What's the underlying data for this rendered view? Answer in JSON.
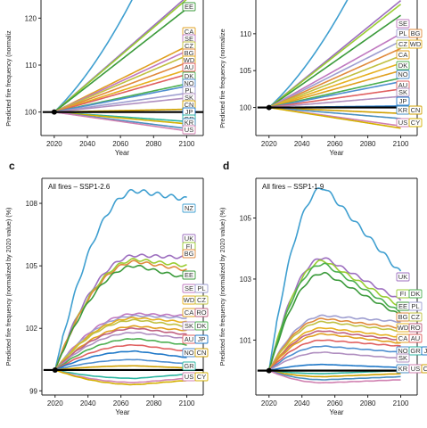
{
  "chart_data": [
    {
      "type": "line",
      "panel_letter": "",
      "title": "",
      "xlabel": "Year",
      "ylabel": "Predicted fire frequency (normaliz",
      "x_ticks": [
        2020,
        2040,
        2060,
        2080,
        2100
      ],
      "y_ticks": [
        100,
        110,
        120
      ],
      "y_tick_labels": [
        "100",
        "110",
        "120"
      ],
      "xlim": [
        2012,
        2110
      ],
      "ylim": [
        95,
        125
      ],
      "country_labels": [
        "EE",
        "CA",
        "SE",
        "CZ",
        "BG",
        "WD",
        "AU",
        "DK",
        "NO",
        "PL",
        "SK",
        "CN",
        "JP",
        "GR",
        "CY",
        "KR",
        "US"
      ],
      "series": [
        {
          "label": "NZ",
          "color": "#3f9fd0",
          "end": 150,
          "shape": "convex"
        },
        {
          "label": "UK",
          "color": "#9d6fbf",
          "end": 124.5,
          "shape": "linear"
        },
        {
          "label": "FI",
          "color": "#9acd32",
          "end": 124,
          "shape": "linear"
        },
        {
          "label": "EE",
          "color": "#3a9a3a",
          "end": 122,
          "shape": "linear"
        },
        {
          "label": "CA",
          "color": "#e0a020",
          "end": 114,
          "shape": "linear"
        },
        {
          "label": "SE",
          "color": "#c079c0",
          "end": 113,
          "shape": "linear"
        },
        {
          "label": "CZ",
          "color": "#c0c040",
          "end": 112,
          "shape": "linear"
        },
        {
          "label": "BG",
          "color": "#e08a3c",
          "end": 110.5,
          "shape": "linear"
        },
        {
          "label": "WD",
          "color": "#e6b020",
          "end": 109,
          "shape": "linear"
        },
        {
          "label": "AU",
          "color": "#e06060",
          "end": 108,
          "shape": "linear"
        },
        {
          "label": "DK",
          "color": "#4caf50",
          "end": 106,
          "shape": "linear"
        },
        {
          "label": "NO",
          "color": "#4f8fd0",
          "end": 105.5,
          "shape": "linear"
        },
        {
          "label": "PL",
          "color": "#9e9ed0",
          "end": 104,
          "shape": "linear"
        },
        {
          "label": "SK",
          "color": "#b08fc0",
          "end": 103,
          "shape": "linear"
        },
        {
          "label": "CN",
          "color": "#d0a000",
          "end": 100.6,
          "shape": "linear"
        },
        {
          "label": "JP",
          "color": "#1f78c8",
          "end": 100,
          "shape": "linear"
        },
        {
          "label": "GR",
          "color": "#2cb5a0",
          "end": 98,
          "shape": "linear"
        },
        {
          "label": "CY",
          "color": "#d4b000",
          "end": 97.5,
          "shape": "linear"
        },
        {
          "label": "KR",
          "color": "#4a8fc0",
          "end": 96.5,
          "shape": "linear"
        },
        {
          "label": "US",
          "color": "#d080b0",
          "end": 96,
          "shape": "linear"
        }
      ]
    },
    {
      "type": "line",
      "panel_letter": "",
      "title": "",
      "xlabel": "Year",
      "ylabel": "Predicted fire frequency (normalize",
      "x_ticks": [
        2020,
        2040,
        2060,
        2080,
        2100
      ],
      "y_ticks": [
        100,
        105,
        110
      ],
      "y_tick_labels": [
        "100",
        "105",
        "110"
      ],
      "xlim": [
        2012,
        2110
      ],
      "ylim": [
        96.2,
        115.3
      ],
      "country_labels": [
        "SE",
        "PL",
        "BG",
        "CZ",
        "WD",
        "CA",
        "DK",
        "NO",
        "AU",
        "SK",
        "JP",
        "KR",
        "CN",
        "US",
        "CY"
      ],
      "series": [
        {
          "label": "NZ",
          "color": "#3f9fd0",
          "end": 130,
          "shape": "convex"
        },
        {
          "label": "UK",
          "color": "#9d6fbf",
          "end": 114.5,
          "shape": "linear"
        },
        {
          "label": "FI",
          "color": "#9acd32",
          "end": 114,
          "shape": "linear"
        },
        {
          "label": "EE",
          "color": "#3a9a3a",
          "end": 112.5,
          "shape": "linear"
        },
        {
          "label": "SE",
          "color": "#c079c0",
          "end": 110,
          "shape": "linear"
        },
        {
          "label": "PL",
          "color": "#9e9ed0",
          "end": 109,
          "shape": "linear"
        },
        {
          "label": "BG",
          "color": "#e08a3c",
          "end": 108,
          "shape": "linear"
        },
        {
          "label": "CZ",
          "color": "#c0c040",
          "end": 107,
          "shape": "linear"
        },
        {
          "label": "WD",
          "color": "#e6b020",
          "end": 106,
          "shape": "linear"
        },
        {
          "label": "CA",
          "color": "#e0a020",
          "end": 105,
          "shape": "linear"
        },
        {
          "label": "DK",
          "color": "#4caf50",
          "end": 104,
          "shape": "linear"
        },
        {
          "label": "NO",
          "color": "#4f8fd0",
          "end": 103.5,
          "shape": "linear"
        },
        {
          "label": "AU",
          "color": "#e06060",
          "end": 102.5,
          "shape": "linear"
        },
        {
          "label": "SK",
          "color": "#b08fc0",
          "end": 101.5,
          "shape": "linear"
        },
        {
          "label": "JP",
          "color": "#1f78c8",
          "end": 100.2,
          "shape": "linear"
        },
        {
          "label": "CN",
          "color": "#d0a000",
          "end": 99.2,
          "shape": "linear"
        },
        {
          "label": "KR",
          "color": "#4a8fc0",
          "end": 98.5,
          "shape": "linear"
        },
        {
          "label": "US",
          "color": "#d080b0",
          "end": 97.5,
          "shape": "linear"
        },
        {
          "label": "CY",
          "color": "#d4b000",
          "end": 97.2,
          "shape": "linear"
        }
      ]
    },
    {
      "type": "line",
      "panel_letter": "c",
      "title": "All fires – SSP1-2.6",
      "xlabel": "Year",
      "ylabel": "Predicted fire frequency (normalized by 2020 value) (%)",
      "x_ticks": [
        2020,
        2040,
        2060,
        2080,
        2100
      ],
      "y_ticks": [
        99,
        102,
        105,
        108
      ],
      "y_tick_labels": [
        "99",
        "102",
        "105",
        "108"
      ],
      "xlim": [
        2012,
        2110
      ],
      "ylim": [
        98.8,
        109.2
      ],
      "country_labels": [
        "NZ",
        "UK",
        "FI",
        "BG",
        "EE",
        "SE",
        "PL",
        "WD",
        "CZ",
        "CA",
        "RO",
        "SK",
        "DK",
        "AU",
        "JP",
        "NO",
        "CN",
        "GR",
        "US",
        "CY"
      ],
      "series": [
        {
          "label": "NZ",
          "color": "#3f9fd0",
          "peak": 108.6,
          "end": 108.2
        },
        {
          "label": "UK",
          "color": "#9d6fbf",
          "peak": 105.5,
          "end": 105.4
        },
        {
          "label": "FI",
          "color": "#9acd32",
          "peak": 105.3,
          "end": 105.0
        },
        {
          "label": "BG",
          "color": "#e08a3c",
          "peak": 105.2,
          "end": 104.8
        },
        {
          "label": "EE",
          "color": "#3a9a3a",
          "peak": 105.0,
          "end": 104.4
        },
        {
          "label": "SE",
          "color": "#c079c0",
          "peak": 102.7,
          "end": 102.6
        },
        {
          "label": "PL",
          "color": "#9e9ed0",
          "peak": 102.6,
          "end": 102.5
        },
        {
          "label": "WD",
          "color": "#e6b020",
          "peak": 102.5,
          "end": 102.3
        },
        {
          "label": "CZ",
          "color": "#c0c040",
          "peak": 102.4,
          "end": 102.1
        },
        {
          "label": "CA",
          "color": "#e0a020",
          "peak": 102.1,
          "end": 101.9
        },
        {
          "label": "RO",
          "color": "#c06080",
          "peak": 102.0,
          "end": 101.7
        },
        {
          "label": "SK",
          "color": "#b08fc0",
          "peak": 101.8,
          "end": 101.5
        },
        {
          "label": "DK",
          "color": "#4caf50",
          "peak": 101.5,
          "end": 101.2
        },
        {
          "label": "AU",
          "color": "#e06060",
          "peak": 101.2,
          "end": 100.9
        },
        {
          "label": "JP",
          "color": "#1f78c8",
          "peak": 100.9,
          "end": 100.6
        },
        {
          "label": "NO",
          "color": "#4f8fd0",
          "peak": 100.5,
          "end": 100.3
        },
        {
          "label": "CN",
          "color": "#d0a000",
          "peak": 100.2,
          "end": 100.1
        },
        {
          "label": "GR",
          "color": "#2cb5a0",
          "peak": 99.6,
          "end": 99.8
        },
        {
          "label": "US",
          "color": "#d080b0",
          "peak": 99.4,
          "end": 99.6
        },
        {
          "label": "CY",
          "color": "#d4b000",
          "peak": 99.3,
          "end": 99.5
        }
      ]
    },
    {
      "type": "line",
      "panel_letter": "d",
      "title": "All fires – SSP1-1.9",
      "xlabel": "Year",
      "ylabel": "Predicted fire frequency (normalized by 2020 value) (%)",
      "x_ticks": [
        2020,
        2040,
        2060,
        2080,
        2100
      ],
      "y_ticks": [
        101,
        103,
        105
      ],
      "y_tick_labels": [
        "101",
        "103",
        "105"
      ],
      "xlim": [
        2012,
        2110
      ],
      "ylim": [
        99.2,
        106.3
      ],
      "country_labels": [
        "UK",
        "FI",
        "DK",
        "EE",
        "PL",
        "BG",
        "CZ",
        "WD",
        "RO",
        "CA",
        "AU",
        "NO",
        "GR",
        "JP",
        "SK",
        "KR",
        "US",
        "CN"
      ],
      "series": [
        {
          "label": "NZ",
          "color": "#3f9fd0",
          "peak": 106.0,
          "end": 103.2
        },
        {
          "label": "UK",
          "color": "#9d6fbf",
          "peak": 103.7,
          "end": 102.3
        },
        {
          "label": "FI",
          "color": "#9acd32",
          "peak": 103.6,
          "end": 102.1
        },
        {
          "label": "DK",
          "color": "#4caf50",
          "peak": 103.5,
          "end": 101.9
        },
        {
          "label": "EE",
          "color": "#3a9a3a",
          "peak": 103.2,
          "end": 101.8
        },
        {
          "label": "PL",
          "color": "#9e9ed0",
          "peak": 101.8,
          "end": 101.6
        },
        {
          "label": "BG",
          "color": "#e08a3c",
          "peak": 101.7,
          "end": 101.4
        },
        {
          "label": "CZ",
          "color": "#c0c040",
          "peak": 101.6,
          "end": 101.3
        },
        {
          "label": "WD",
          "color": "#e6b020",
          "peak": 101.4,
          "end": 101.1
        },
        {
          "label": "RO",
          "color": "#c06080",
          "peak": 101.3,
          "end": 101.0
        },
        {
          "label": "CA",
          "color": "#e0a020",
          "peak": 101.2,
          "end": 100.9
        },
        {
          "label": "AU",
          "color": "#e06060",
          "peak": 101.0,
          "end": 100.8
        },
        {
          "label": "NO",
          "color": "#4f8fd0",
          "peak": 100.8,
          "end": 100.6
        },
        {
          "label": "SK",
          "color": "#b08fc0",
          "peak": 100.6,
          "end": 100.4
        },
        {
          "label": "JP",
          "color": "#1f78c8",
          "peak": 100.2,
          "end": 100.1
        },
        {
          "label": "GR",
          "color": "#2cb5a0",
          "peak": 99.9,
          "end": 100.0
        },
        {
          "label": "CN",
          "color": "#d0a000",
          "peak": 99.8,
          "end": 99.9
        },
        {
          "label": "KR",
          "color": "#4a8fc0",
          "peak": 99.7,
          "end": 99.8
        },
        {
          "label": "US",
          "color": "#d080b0",
          "peak": 99.6,
          "end": 99.7
        }
      ]
    }
  ]
}
